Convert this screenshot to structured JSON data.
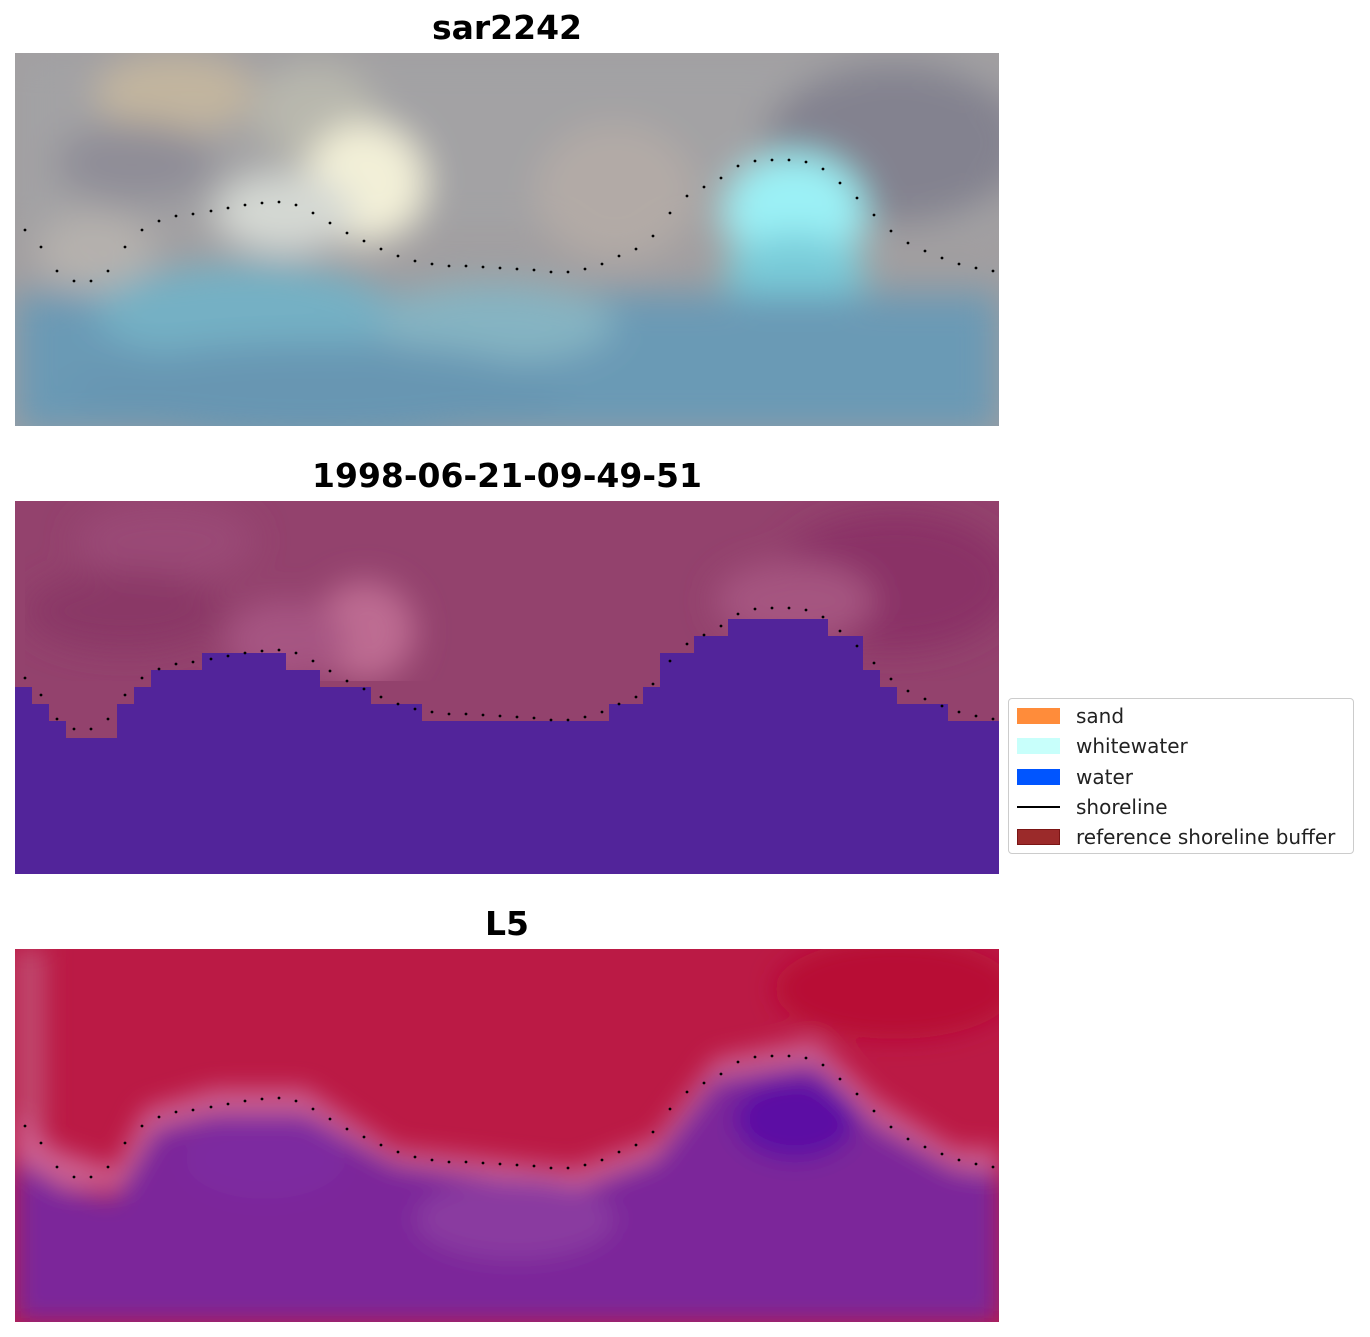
{
  "titles": [
    "sar2242",
    "1998-06-21-09-49-51",
    "L5"
  ],
  "legend": [
    {
      "label": "sand",
      "color": "#ff8c3a",
      "kind": "patch"
    },
    {
      "label": "whitewater",
      "color": "#c8fffb",
      "kind": "patch"
    },
    {
      "label": "water",
      "color": "#0055ff",
      "kind": "patch"
    },
    {
      "label": "shoreline",
      "color": "#000000",
      "kind": "line"
    },
    {
      "label": "reference shoreline buffer",
      "color": "#9b2a2a",
      "kind": "patch",
      "edge": "#7a1515"
    }
  ]
}
